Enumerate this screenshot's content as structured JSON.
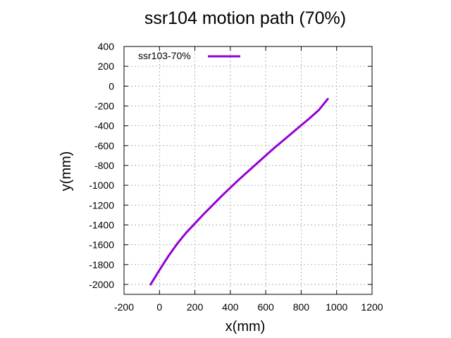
{
  "chart_data": {
    "type": "line",
    "title": "ssr104 motion path (70%)",
    "xlabel": "x(mm)",
    "ylabel": "y(mm)",
    "xlim": [
      -200,
      1200
    ],
    "ylim": [
      -2100,
      400
    ],
    "xticks": [
      -200,
      0,
      200,
      400,
      600,
      800,
      1000,
      1200
    ],
    "yticks": [
      400,
      200,
      0,
      -200,
      -400,
      -600,
      -800,
      -1000,
      -1200,
      -1400,
      -1600,
      -1800,
      -2000
    ],
    "grid": true,
    "legend_position": "top-left",
    "series": [
      {
        "name": "ssr103-70%",
        "color": "#9400d3",
        "x": [
          -50,
          0,
          50,
          100,
          150,
          200,
          250,
          300,
          350,
          400,
          450,
          500,
          550,
          600,
          650,
          700,
          750,
          800,
          850,
          900,
          950
        ],
        "y": [
          -2000,
          -1855,
          -1715,
          -1590,
          -1480,
          -1385,
          -1290,
          -1200,
          -1110,
          -1025,
          -940,
          -860,
          -780,
          -700,
          -620,
          -545,
          -470,
          -395,
          -320,
          -240,
          -130
        ]
      }
    ]
  }
}
